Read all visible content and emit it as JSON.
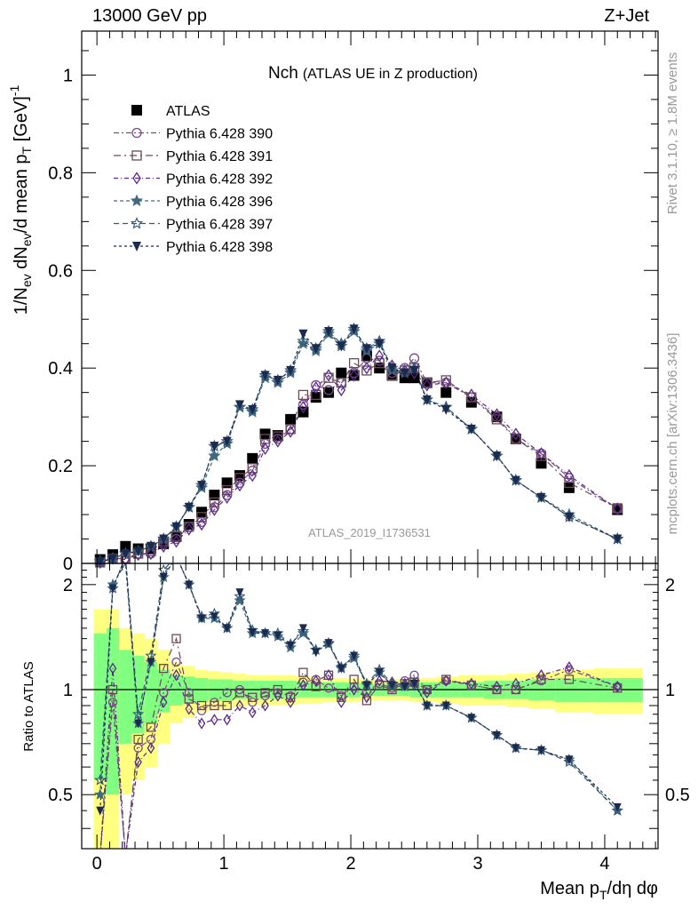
{
  "header": {
    "left": "13000 GeV pp",
    "right": "Z+Jet"
  },
  "side": {
    "rivet": "Rivet 3.1.10, ≥ 1.8M events",
    "mcplots": "mcplots.cern.ch [arXiv:1306.3436]"
  },
  "chart_data": [
    {
      "type": "scatter",
      "title": "Nch",
      "subtitle": "(ATLAS UE in Z production)",
      "watermark": "ATLAS_2019_I1736531",
      "ylabel": "1/N_ev dN_ev/d mean p_T [GeV]^-1",
      "xlim": [
        -0.12,
        4.42
      ],
      "ylim": [
        0,
        1.09
      ],
      "yticks": [
        "0",
        "0.2",
        "0.4",
        "0.6",
        "0.8",
        "1"
      ],
      "legend_placement": "top-left",
      "x": [
        0.025,
        0.125,
        0.225,
        0.325,
        0.425,
        0.525,
        0.625,
        0.725,
        0.825,
        0.925,
        1.025,
        1.125,
        1.225,
        1.325,
        1.425,
        1.525,
        1.625,
        1.725,
        1.825,
        1.925,
        2.025,
        2.125,
        2.225,
        2.325,
        2.425,
        2.5,
        2.6,
        2.75,
        2.95,
        3.15,
        3.3,
        3.5,
        3.72,
        4.1
      ],
      "series": [
        {
          "name": "ATLAS",
          "color": "#000000",
          "marker": "square-filled",
          "values": [
            0.008,
            0.018,
            0.035,
            0.03,
            0.03,
            0.04,
            0.055,
            0.08,
            0.105,
            0.14,
            0.165,
            0.18,
            0.215,
            0.265,
            0.262,
            0.295,
            0.31,
            0.34,
            0.35,
            0.39,
            0.385,
            0.425,
            0.4,
            0.385,
            0.38,
            0.38,
            0.37,
            0.35,
            0.33,
            0.3,
            0.255,
            0.205,
            0.155,
            0.11
          ]
        },
        {
          "name": "Pythia 6.428 390",
          "color": "#7a4a8c",
          "marker": "circle-open",
          "values": [
            0.002,
            0.01,
            0.01,
            0.02,
            0.02,
            0.04,
            0.05,
            0.075,
            0.085,
            0.115,
            0.14,
            0.165,
            0.19,
            0.245,
            0.255,
            0.275,
            0.325,
            0.365,
            0.355,
            0.37,
            0.39,
            0.42,
            0.415,
            0.39,
            0.4,
            0.42,
            0.37,
            0.37,
            0.34,
            0.3,
            0.255,
            0.225,
            0.175,
            0.112
          ]
        },
        {
          "name": "Pythia 6.428 391",
          "color": "#6b4a55",
          "marker": "square-open",
          "values": [
            0.002,
            0.01,
            0.01,
            0.02,
            0.025,
            0.045,
            0.055,
            0.075,
            0.095,
            0.125,
            0.15,
            0.175,
            0.195,
            0.255,
            0.26,
            0.275,
            0.345,
            0.345,
            0.38,
            0.37,
            0.41,
            0.395,
            0.41,
            0.385,
            0.395,
            0.4,
            0.37,
            0.375,
            0.34,
            0.295,
            0.255,
            0.22,
            0.165,
            0.113
          ]
        },
        {
          "name": "Pythia 6.428 392",
          "color": "#5a2a8c",
          "marker": "diamond-open",
          "values": [
            0.002,
            0.01,
            0.008,
            0.018,
            0.02,
            0.035,
            0.045,
            0.07,
            0.08,
            0.11,
            0.135,
            0.16,
            0.18,
            0.235,
            0.25,
            0.27,
            0.32,
            0.36,
            0.385,
            0.355,
            0.385,
            0.4,
            0.425,
            0.405,
            0.395,
            0.39,
            0.365,
            0.37,
            0.345,
            0.305,
            0.265,
            0.225,
            0.18,
            0.112
          ]
        },
        {
          "name": "Pythia 6.428 396",
          "color": "#406a80",
          "marker": "star-filled",
          "values": [
            0.004,
            0.01,
            0.02,
            0.025,
            0.035,
            0.05,
            0.075,
            0.115,
            0.155,
            0.22,
            0.245,
            0.32,
            0.31,
            0.38,
            0.37,
            0.39,
            0.45,
            0.435,
            0.47,
            0.445,
            0.475,
            0.435,
            0.45,
            0.395,
            0.39,
            0.4,
            0.335,
            0.32,
            0.275,
            0.22,
            0.17,
            0.135,
            0.1,
            0.05
          ]
        },
        {
          "name": "Pythia 6.428 397",
          "color": "#34587a",
          "marker": "star-open",
          "values": [
            0.004,
            0.01,
            0.02,
            0.025,
            0.035,
            0.05,
            0.075,
            0.115,
            0.16,
            0.24,
            0.25,
            0.32,
            0.315,
            0.385,
            0.375,
            0.395,
            0.455,
            0.44,
            0.475,
            0.45,
            0.48,
            0.44,
            0.455,
            0.4,
            0.39,
            0.4,
            0.335,
            0.32,
            0.275,
            0.22,
            0.17,
            0.135,
            0.095,
            0.05
          ]
        },
        {
          "name": "Pythia 6.428 398",
          "color": "#1c2a4e",
          "marker": "triangle-down-filled",
          "values": [
            0.004,
            0.01,
            0.02,
            0.025,
            0.035,
            0.05,
            0.075,
            0.115,
            0.16,
            0.24,
            0.25,
            0.325,
            0.315,
            0.385,
            0.375,
            0.395,
            0.47,
            0.44,
            0.475,
            0.445,
            0.48,
            0.44,
            0.45,
            0.4,
            0.39,
            0.395,
            0.335,
            0.315,
            0.275,
            0.22,
            0.17,
            0.135,
            0.095,
            0.05
          ]
        }
      ]
    },
    {
      "type": "line",
      "ylabel": "Ratio to ATLAS",
      "xlabel": "Mean p_T/dη dφ",
      "xlim": [
        -0.12,
        4.42
      ],
      "ylim": [
        0.35,
        2.3
      ],
      "yscale": "log",
      "xticks": [
        "0",
        "1",
        "2",
        "3",
        "4"
      ],
      "yticks": [
        "0.5",
        "1",
        "2"
      ],
      "reference_line": 1,
      "bands": {
        "inner_color": "#80ff80",
        "outer_color": "#ffff80",
        "x": [
          0.025,
          0.125,
          0.225,
          0.325,
          0.425,
          0.525,
          0.625,
          0.725,
          0.825,
          0.925,
          1.025,
          1.125,
          1.225,
          1.325,
          1.425,
          1.525,
          1.625,
          1.725,
          1.825,
          1.925,
          2.025,
          2.125,
          2.225,
          2.325,
          2.425,
          2.5,
          2.6,
          2.75,
          2.95,
          3.15,
          3.3,
          3.5,
          3.72,
          4.1
        ],
        "inner": [
          0.45,
          0.5,
          0.3,
          0.25,
          0.2,
          0.14,
          0.1,
          0.09,
          0.08,
          0.07,
          0.07,
          0.06,
          0.06,
          0.06,
          0.06,
          0.06,
          0.05,
          0.05,
          0.05,
          0.05,
          0.05,
          0.04,
          0.04,
          0.04,
          0.04,
          0.05,
          0.05,
          0.05,
          0.05,
          0.06,
          0.06,
          0.07,
          0.08,
          0.08
        ],
        "outer": [
          0.7,
          0.7,
          0.5,
          0.45,
          0.4,
          0.3,
          0.2,
          0.17,
          0.14,
          0.13,
          0.12,
          0.11,
          0.1,
          0.1,
          0.1,
          0.1,
          0.09,
          0.09,
          0.08,
          0.08,
          0.08,
          0.07,
          0.07,
          0.07,
          0.07,
          0.08,
          0.08,
          0.09,
          0.1,
          0.1,
          0.11,
          0.12,
          0.14,
          0.15
        ]
      },
      "x": [
        0.025,
        0.125,
        0.225,
        0.325,
        0.425,
        0.525,
        0.625,
        0.725,
        0.825,
        0.925,
        1.025,
        1.125,
        1.225,
        1.325,
        1.425,
        1.525,
        1.625,
        1.725,
        1.825,
        1.925,
        2.025,
        2.125,
        2.225,
        2.325,
        2.425,
        2.5,
        2.6,
        2.75,
        2.95,
        3.15,
        3.3,
        3.5,
        3.72,
        4.1
      ],
      "series": [
        {
          "name": "Pythia 6.428 390",
          "color": "#7a4a8c",
          "marker": "circle-open",
          "values": [
            0.3,
            0.92,
            0.3,
            0.68,
            0.72,
            0.98,
            1.2,
            0.98,
            0.87,
            0.92,
            0.98,
            1.0,
            0.92,
            0.96,
            0.98,
            0.96,
            1.05,
            1.07,
            1.01,
            0.96,
            1.02,
            0.99,
            1.04,
            1.01,
            1.06,
            1.1,
            1.0,
            1.06,
            1.03,
            1.0,
            1.0,
            1.06,
            1.14,
            1.02
          ]
        },
        {
          "name": "Pythia 6.428 391",
          "color": "#6b4a55",
          "marker": "square-open",
          "values": [
            0.3,
            1.0,
            0.3,
            0.72,
            0.78,
            1.15,
            1.4,
            0.94,
            0.9,
            0.9,
            0.9,
            0.98,
            0.95,
            0.98,
            1.0,
            0.95,
            1.12,
            1.02,
            1.1,
            0.95,
            1.07,
            0.93,
            1.03,
            1.0,
            1.04,
            1.05,
            1.0,
            1.07,
            1.03,
            1.0,
            1.0,
            1.07,
            1.07,
            1.01
          ]
        },
        {
          "name": "Pythia 6.428 392",
          "color": "#5a2a8c",
          "marker": "diamond-open",
          "values": [
            0.3,
            1.15,
            0.3,
            0.62,
            0.68,
            0.92,
            1.1,
            0.88,
            0.8,
            0.82,
            0.82,
            0.9,
            0.86,
            0.9,
            0.96,
            0.92,
            1.03,
            1.06,
            1.1,
            0.92,
            1.0,
            0.95,
            1.06,
            1.05,
            1.04,
            1.03,
            0.98,
            1.06,
            1.04,
            1.02,
            1.04,
            1.1,
            1.16,
            1.02
          ]
        },
        {
          "name": "Pythia 6.428 396",
          "color": "#406a80",
          "marker": "star-filled",
          "values": [
            0.5,
            2.0,
            2.3,
            0.8,
            1.2,
            2.1,
            2.6,
            2.0,
            1.6,
            1.6,
            1.5,
            1.8,
            1.45,
            1.45,
            1.42,
            1.32,
            1.45,
            1.3,
            1.35,
            1.15,
            1.23,
            1.03,
            1.12,
            1.03,
            1.02,
            1.05,
            0.9,
            0.9,
            0.83,
            0.74,
            0.68,
            0.67,
            0.63,
            0.45
          ]
        },
        {
          "name": "Pythia 6.428 397",
          "color": "#34587a",
          "marker": "star-open",
          "values": [
            0.55,
            1.95,
            2.4,
            0.85,
            1.25,
            2.2,
            2.6,
            2.0,
            1.62,
            1.65,
            1.5,
            1.85,
            1.48,
            1.45,
            1.45,
            1.35,
            1.47,
            1.3,
            1.36,
            1.16,
            1.25,
            1.04,
            1.14,
            1.04,
            1.03,
            1.05,
            0.9,
            0.9,
            0.83,
            0.74,
            0.68,
            0.67,
            0.62,
            0.45
          ]
        },
        {
          "name": "Pythia 6.428 398",
          "color": "#1c2a4e",
          "marker": "triangle-down-filled",
          "values": [
            0.45,
            1.95,
            2.4,
            0.8,
            1.2,
            2.1,
            2.6,
            2.0,
            1.6,
            1.62,
            1.5,
            1.9,
            1.46,
            1.45,
            1.43,
            1.34,
            1.5,
            1.28,
            1.36,
            1.15,
            1.25,
            1.03,
            1.12,
            1.03,
            1.02,
            1.04,
            0.9,
            0.9,
            0.83,
            0.74,
            0.68,
            0.67,
            0.63,
            0.46
          ]
        }
      ]
    }
  ]
}
